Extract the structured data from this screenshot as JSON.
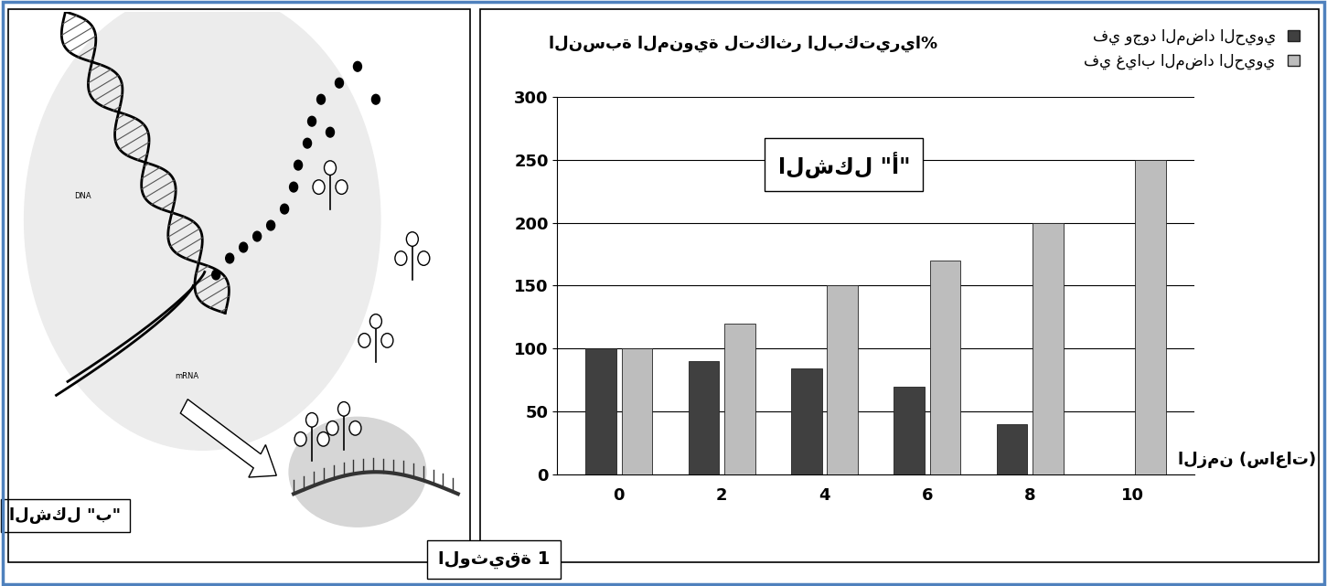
{
  "chart_data": {
    "type": "bar",
    "annotation": "الشكل \"أ\"",
    "x_label": "الزمن (ساعات)",
    "y_label": "النسبة المنوية لتكاثر البكتيريا%",
    "categories": [
      "0",
      "2",
      "4",
      "6",
      "8",
      "10"
    ],
    "series": [
      {
        "name": "في وجود المضاد الحيوي",
        "color": "#404040",
        "values": [
          100,
          90,
          84,
          70,
          40,
          0
        ]
      },
      {
        "name": "في غياب المضاد الحيوي",
        "color": "#bdbdbd",
        "values": [
          100,
          120,
          150,
          170,
          200,
          250
        ]
      }
    ],
    "ylim": [
      0,
      300
    ],
    "yticks": [
      0,
      50,
      100,
      150,
      200,
      250,
      300
    ],
    "grid": true,
    "legend": "upper right"
  },
  "diagram": {
    "labels": [
      "DNA",
      "mRNA"
    ],
    "caption": "الشكل \"ب\""
  },
  "document_label": "الوثيقة 1"
}
